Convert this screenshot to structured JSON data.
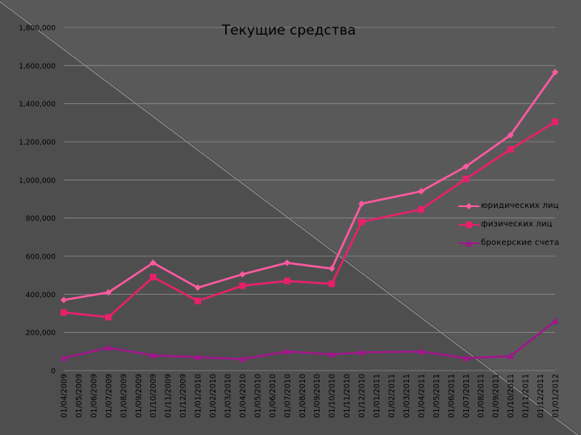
{
  "chart_data": {
    "type": "line",
    "title": "Текущие средства",
    "xlabel": "",
    "ylabel": "",
    "ylim": [
      0,
      1800000
    ],
    "yticks": [
      {
        "value": 0,
        "label": "0"
      },
      {
        "value": 200000,
        "label": "200,000"
      },
      {
        "value": 400000,
        "label": "400,000"
      },
      {
        "value": 600000,
        "label": "600,000"
      },
      {
        "value": 800000,
        "label": "800,000"
      },
      {
        "value": 1000000,
        "label": "1,000,000"
      },
      {
        "value": 1200000,
        "label": "1,200,000"
      },
      {
        "value": 1400000,
        "label": "1,400,000"
      },
      {
        "value": 1600000,
        "label": "1,600,000"
      },
      {
        "value": 1800000,
        "label": "1,800,000"
      }
    ],
    "categories": [
      "01/04/2009",
      "01/05/2009",
      "01/06/2009",
      "01/07/2009",
      "01/08/2009",
      "01/09/2009",
      "01/10/2009",
      "01/11/2009",
      "01/12/2009",
      "01/01/2010",
      "01/02/2010",
      "01/03/2010",
      "01/04/2010",
      "01/05/2010",
      "01/06/2010",
      "01/07/2010",
      "01/08/2010",
      "01/09/2010",
      "01/10/2010",
      "01/11/2010",
      "01/12/2010",
      "01/01/2011",
      "01/02/2011",
      "01/03/2011",
      "01/04/2011",
      "01/05/2011",
      "01/06/2011",
      "01/07/2011",
      "01/08/2011",
      "01/09/2011",
      "01/10/2011",
      "01/11/2011",
      "01/12/2011",
      "01/01/2012"
    ],
    "series": [
      {
        "name": "юридических лиц",
        "color": "#ff5aa0",
        "marker": "diamond",
        "points": [
          {
            "x": "01/04/2009",
            "y": 370000
          },
          {
            "x": "01/07/2009",
            "y": 410000
          },
          {
            "x": "01/10/2009",
            "y": 565000
          },
          {
            "x": "01/01/2010",
            "y": 435000
          },
          {
            "x": "01/04/2010",
            "y": 505000
          },
          {
            "x": "01/07/2010",
            "y": 565000
          },
          {
            "x": "01/10/2010",
            "y": 535000
          },
          {
            "x": "01/12/2010",
            "y": 875000
          },
          {
            "x": "01/04/2011",
            "y": 940000
          },
          {
            "x": "01/07/2011",
            "y": 1070000
          },
          {
            "x": "01/10/2011",
            "y": 1235000
          },
          {
            "x": "01/01/2012",
            "y": 1565000
          }
        ]
      },
      {
        "name": "физических лиц",
        "color": "#e8206a",
        "marker": "square",
        "points": [
          {
            "x": "01/04/2009",
            "y": 305000
          },
          {
            "x": "01/07/2009",
            "y": 280000
          },
          {
            "x": "01/10/2009",
            "y": 490000
          },
          {
            "x": "01/01/2010",
            "y": 365000
          },
          {
            "x": "01/04/2010",
            "y": 445000
          },
          {
            "x": "01/07/2010",
            "y": 470000
          },
          {
            "x": "01/10/2010",
            "y": 455000
          },
          {
            "x": "01/12/2010",
            "y": 780000
          },
          {
            "x": "01/04/2011",
            "y": 845000
          },
          {
            "x": "01/07/2011",
            "y": 1005000
          },
          {
            "x": "01/10/2011",
            "y": 1160000
          },
          {
            "x": "01/01/2012",
            "y": 1305000
          }
        ]
      },
      {
        "name": "брокерские счета",
        "color": "#a0178a",
        "marker": "triangle",
        "points": [
          {
            "x": "01/04/2009",
            "y": 65000
          },
          {
            "x": "01/07/2009",
            "y": 120000
          },
          {
            "x": "01/10/2009",
            "y": 80000
          },
          {
            "x": "01/01/2010",
            "y": 70000
          },
          {
            "x": "01/04/2010",
            "y": 60000
          },
          {
            "x": "01/07/2010",
            "y": 100000
          },
          {
            "x": "01/10/2010",
            "y": 85000
          },
          {
            "x": "01/12/2010",
            "y": 95000
          },
          {
            "x": "01/04/2011",
            "y": 100000
          },
          {
            "x": "01/07/2011",
            "y": 65000
          },
          {
            "x": "01/10/2011",
            "y": 75000
          },
          {
            "x": "01/01/2012",
            "y": 260000
          }
        ]
      }
    ],
    "grid": true,
    "legend_position": "right"
  }
}
